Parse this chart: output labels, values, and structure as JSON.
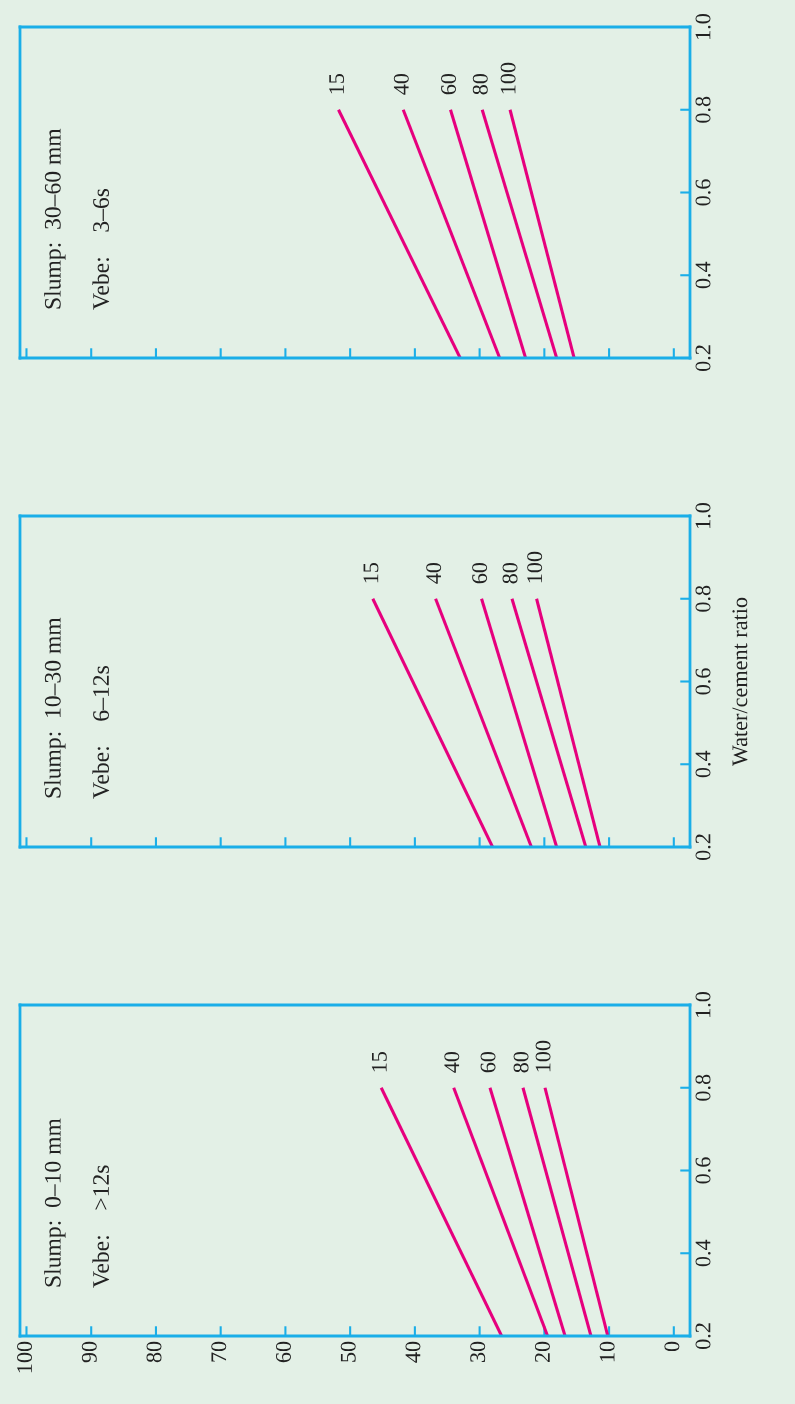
{
  "chart_data": [
    {
      "type": "line",
      "annotations": [
        "Slump:  30–60 mm",
        "Vebe:    3–6s"
      ],
      "xlim": [
        101,
        -2.5
      ],
      "xticks": [
        0,
        10,
        20,
        30,
        40,
        50,
        60,
        70,
        80,
        90,
        100
      ],
      "ylim": [
        0.2,
        1.0
      ],
      "yticks": [
        {
          "value": 0.2,
          "label": "0.2"
        },
        {
          "value": 0.4,
          "label": "0.4"
        },
        {
          "value": 0.6,
          "label": "0.6"
        },
        {
          "value": 0.8,
          "label": "0.8"
        },
        {
          "value": 1.0,
          "label": "1.0"
        }
      ],
      "tick_labels": "y",
      "grid": false,
      "marker": "none",
      "line_style": "solid",
      "series": [
        {
          "name": "15",
          "color": "#e6007e",
          "x": [
            33.0,
            51.8
          ],
          "values": [
            0.2,
            0.8
          ]
        },
        {
          "name": "40",
          "color": "#e6007e",
          "x": [
            26.9,
            41.8
          ],
          "values": [
            0.2,
            0.8
          ]
        },
        {
          "name": "60",
          "color": "#e6007e",
          "x": [
            22.9,
            34.5
          ],
          "values": [
            0.2,
            0.8
          ]
        },
        {
          "name": "80",
          "color": "#e6007e",
          "x": [
            18.1,
            29.6
          ],
          "values": [
            0.2,
            0.8
          ]
        },
        {
          "name": "100",
          "color": "#e6007e",
          "x": [
            15.4,
            25.3
          ],
          "values": [
            0.2,
            0.8
          ]
        }
      ]
    },
    {
      "type": "line",
      "ylabel": "Water/cement ratio",
      "annotations": [
        "Slump:  10–30 mm",
        "Vebe:    6–12s"
      ],
      "xlim": [
        101,
        -2.5
      ],
      "xticks": [
        0,
        10,
        20,
        30,
        40,
        50,
        60,
        70,
        80,
        90,
        100
      ],
      "ylim": [
        0.2,
        1.0
      ],
      "yticks": [
        {
          "value": 0.2,
          "label": "0.2"
        },
        {
          "value": 0.4,
          "label": "0.4"
        },
        {
          "value": 0.6,
          "label": "0.6"
        },
        {
          "value": 0.8,
          "label": "0.8"
        },
        {
          "value": 1.0,
          "label": "1.0"
        }
      ],
      "tick_labels": "y",
      "grid": false,
      "marker": "none",
      "line_style": "solid",
      "series": [
        {
          "name": "15",
          "color": "#e6007e",
          "x": [
            28.0,
            46.5
          ],
          "values": [
            0.2,
            0.8
          ]
        },
        {
          "name": "40",
          "color": "#e6007e",
          "x": [
            22.0,
            36.8
          ],
          "values": [
            0.2,
            0.8
          ]
        },
        {
          "name": "60",
          "color": "#e6007e",
          "x": [
            18.1,
            29.7
          ],
          "values": [
            0.2,
            0.8
          ]
        },
        {
          "name": "80",
          "color": "#e6007e",
          "x": [
            13.6,
            25.0
          ],
          "values": [
            0.2,
            0.8
          ]
        },
        {
          "name": "100",
          "color": "#e6007e",
          "x": [
            11.4,
            21.2
          ],
          "values": [
            0.2,
            0.8
          ]
        }
      ]
    },
    {
      "type": "line",
      "annotations": [
        "Slump:  0–10 mm",
        "Vebe:    >12s"
      ],
      "xlim": [
        101,
        -2.5
      ],
      "xticks": [
        0,
        10,
        20,
        30,
        40,
        50,
        60,
        70,
        80,
        90,
        100
      ],
      "ylim": [
        0.2,
        1.0
      ],
      "yticks": [
        {
          "value": 0.2,
          "label": "0.2"
        },
        {
          "value": 0.4,
          "label": "0.4"
        },
        {
          "value": 0.6,
          "label": "0.6"
        },
        {
          "value": 0.8,
          "label": "0.8"
        },
        {
          "value": 1.0,
          "label": "1.0"
        }
      ],
      "grid": false,
      "marker": "none",
      "line_style": "solid",
      "series": [
        {
          "name": "15",
          "color": "#e6007e",
          "x": [
            26.6,
            45.2
          ],
          "values": [
            0.2,
            0.8
          ]
        },
        {
          "name": "40",
          "color": "#e6007e",
          "x": [
            19.5,
            34.0
          ],
          "values": [
            0.2,
            0.8
          ]
        },
        {
          "name": "60",
          "color": "#e6007e",
          "x": [
            16.8,
            28.4
          ],
          "values": [
            0.2,
            0.8
          ]
        },
        {
          "name": "80",
          "color": "#e6007e",
          "x": [
            12.8,
            23.3
          ],
          "values": [
            0.2,
            0.8
          ]
        },
        {
          "name": "100",
          "color": "#e6007e",
          "x": [
            10.2,
            19.9
          ],
          "values": [
            0.2,
            0.8
          ]
        }
      ]
    }
  ]
}
